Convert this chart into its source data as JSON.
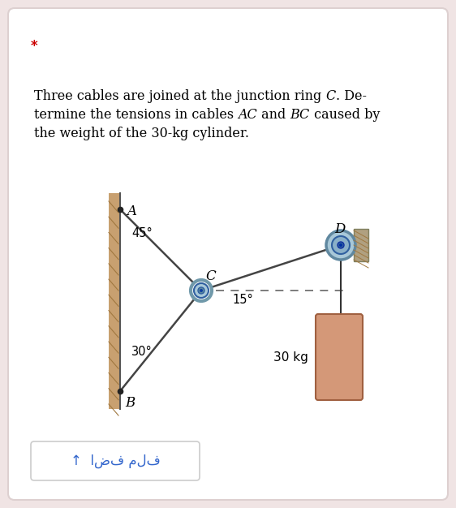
{
  "bg_color": "#f0e4e4",
  "card_color": "#ffffff",
  "star_color": "#cc0000",
  "wall_color": "#c8a070",
  "hatch_color": "#a07840",
  "cable_color": "#444444",
  "dashed_color": "#666666",
  "ring_outer_color": "#a8c8d8",
  "ring_outer_edge": "#7099aa",
  "ring_inner_color": "#5888a0",
  "ring_inner_edge": "#3060a0",
  "ring_dot_color": "#1040a0",
  "pulley_outer_color": "#a8c8d8",
  "pulley_outer_edge": "#6088a0",
  "pulley_inner_color": "#3060a0",
  "pulley_dot_color": "#0030a0",
  "cylinder_face": "#d49878",
  "cylinder_edge": "#a06040",
  "rope_color": "#333333",
  "bracket_color": "#b0a080",
  "bracket_edge": "#808060",
  "button_text_color": "#3366cc",
  "button_border": "#cccccc",
  "text_color": "#222222",
  "A_label": "A",
  "B_label": "B",
  "C_label": "C",
  "D_label": "D",
  "angle_A": "45°",
  "angle_B": "30°",
  "angle_D": "15°",
  "weight_label": "30 kg",
  "button_text": "↑  اضف ملف"
}
